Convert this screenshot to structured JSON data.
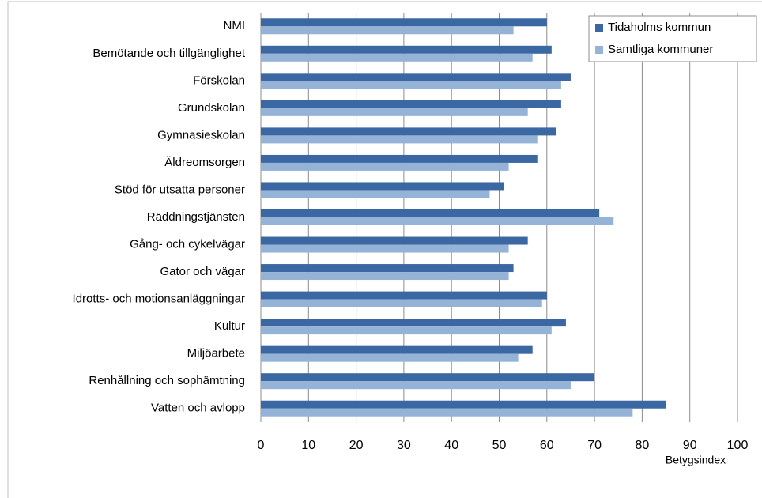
{
  "chart_data": {
    "type": "hbar",
    "x_label": "Betygsindex",
    "categories": [
      "NMI",
      "Bemötande och tillgänglighet",
      "Förskolan",
      "Grundskolan",
      "Gymnasieskolan",
      "Äldreomsorgen",
      "Stöd för utsatta personer",
      "Räddningstjänsten",
      "Gång- och cykelvägar",
      "Gator och vägar",
      "Idrotts- och motionsanläggningar",
      "Kultur",
      "Miljöarbete",
      "Renhållning och sophämtning",
      "Vatten och avlopp"
    ],
    "series": [
      {
        "name": "Tidaholms kommun",
        "color": "#3b67a3",
        "values": [
          60,
          61,
          65,
          63,
          62,
          58,
          51,
          71,
          56,
          53,
          60,
          64,
          57,
          70,
          85
        ]
      },
      {
        "name": "Samtliga kommuner",
        "color": "#95b3d7",
        "values": [
          53,
          57,
          63,
          56,
          58,
          52,
          48,
          74,
          52,
          52,
          59,
          61,
          54,
          65,
          78
        ]
      }
    ],
    "xlim": [
      0,
      100
    ],
    "xticks": [
      0,
      10,
      20,
      30,
      40,
      50,
      60,
      70,
      80,
      90,
      100
    ],
    "grid": true,
    "legend": "top-right"
  }
}
